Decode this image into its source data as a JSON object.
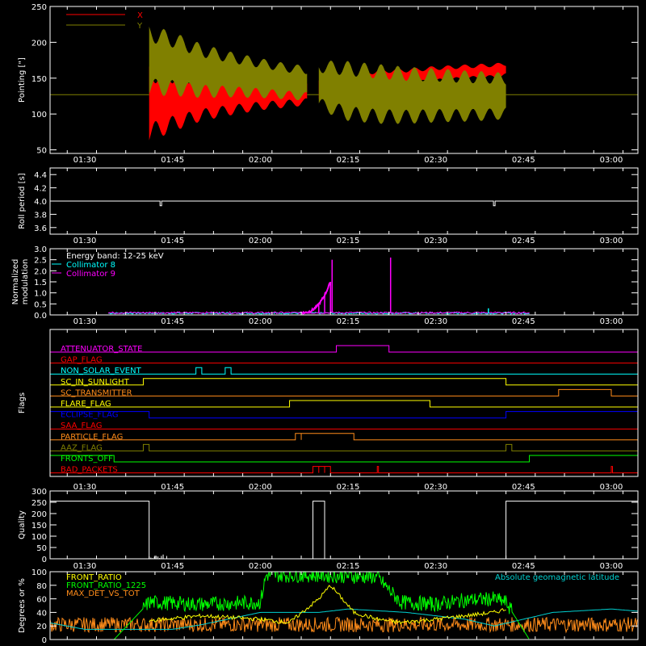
{
  "colors": {
    "background": "#000000",
    "axes": "#ffffff",
    "x": "#ff0000",
    "y": "#808000",
    "collimator8": "#00ffff",
    "collimator9": "#ff00ff",
    "front_ratio": "#ffff00",
    "front_ratio_1225": "#00ff00",
    "max_det": "#ff8c1a",
    "latitude": "#00d0d0"
  },
  "time_ticks": [
    "01:30",
    "01:45",
    "02:00",
    "02:15",
    "02:30",
    "02:45",
    "03:00"
  ],
  "chart_data": [
    {
      "id": "pointing",
      "type": "line",
      "ylabel": "Pointing [\"]",
      "ylim": [
        45,
        250
      ],
      "yticks": [
        "50",
        "100",
        "150",
        "200",
        "250"
      ],
      "legend": {
        "placement": "top-left",
        "entries": [
          "X",
          "Y"
        ]
      },
      "series": [
        {
          "name": "X",
          "color": "#ff0000",
          "x": [
            "01:41",
            "01:45",
            "01:50",
            "01:55",
            "02:00",
            "02:05",
            "02:08",
            "02:10",
            "02:15",
            "02:20",
            "02:25",
            "02:30",
            "02:35",
            "02:40",
            "02:42"
          ],
          "center": [
            115,
            120,
            125,
            128,
            130,
            131,
            132,
            134,
            142,
            150,
            152,
            155,
            158,
            160,
            162
          ],
          "halfwidth": [
            55,
            45,
            35,
            30,
            25,
            22,
            20,
            18,
            15,
            13,
            12,
            12,
            11,
            11,
            10
          ]
        },
        {
          "name": "Y",
          "color": "#808000",
          "x": [
            "01:41",
            "01:45",
            "01:50",
            "01:55",
            "02:00",
            "02:05",
            "02:08",
            "02:10",
            "02:15",
            "02:20",
            "02:25",
            "02:30",
            "02:35",
            "02:40",
            "02:42"
          ],
          "center": [
            175,
            170,
            160,
            155,
            150,
            145,
            143,
            140,
            132,
            128,
            126,
            126,
            125,
            125,
            125
          ],
          "halfwidth": [
            50,
            45,
            38,
            32,
            28,
            25,
            25,
            35,
            42,
            42,
            40,
            38,
            36,
            34,
            32
          ]
        }
      ],
      "baseline": 127
    },
    {
      "id": "roll",
      "type": "line",
      "ylabel": "Roll period [s]",
      "ylim": [
        3.5,
        4.5
      ],
      "yticks": [
        "3.6",
        "3.8",
        "4.0",
        "4.2",
        "4.4"
      ],
      "series": [
        {
          "name": "",
          "value": 4.0,
          "dips": [
            [
              "01:43",
              3.93
            ],
            [
              "02:40",
              3.93
            ]
          ]
        }
      ]
    },
    {
      "id": "modulation",
      "type": "line",
      "ylabel": "Normalized modulation",
      "ylim": [
        0,
        3.0
      ],
      "yticks": [
        "0.0",
        "0.5",
        "1.0",
        "1.5",
        "2.0",
        "2.5",
        "3.0"
      ],
      "legend": {
        "placement": "top-left",
        "entries": [
          "Energy band: 12-25 keV",
          "Collimator 8",
          "Collimator 9"
        ]
      },
      "series": [
        {
          "name": "Collimator 8",
          "color": "#00ffff",
          "x": [
            "01:34",
            "02:46"
          ],
          "baseline": 0.08,
          "spikes": [
            [
              "02:39",
              0.3
            ],
            [
              "02:12",
              0.5
            ]
          ]
        },
        {
          "name": "Collimator 9",
          "color": "#ff00ff",
          "x": [
            "01:34",
            "02:46"
          ],
          "baseline": 0.1,
          "spikes": [
            [
              "02:10",
              0.5
            ],
            [
              "02:11",
              0.9
            ],
            [
              "02:12",
              1.5
            ],
            [
              "02:12",
              2.5
            ],
            [
              "02:22",
              2.6
            ]
          ]
        }
      ]
    },
    {
      "id": "flags",
      "type": "line",
      "ylabel": "Flags",
      "flags": [
        {
          "name": "ATTENUATOR_STATE",
          "color": "#ff00ff",
          "high": [
            [
              "02:13",
              "02:22"
            ]
          ]
        },
        {
          "name": "GAP_FLAG",
          "color": "#ff0000",
          "high": []
        },
        {
          "name": "NON_SOLAR_EVENT",
          "color": "#00ffff",
          "high": [
            [
              "01:49",
              "01:50"
            ],
            [
              "01:54",
              "01:55"
            ]
          ]
        },
        {
          "name": "SC_IN_SUNLIGHT",
          "color": "#ffff00",
          "high": [
            [
              "01:40",
              "02:42"
            ]
          ]
        },
        {
          "name": "SC_TRANSMITTER",
          "color": "#ff8c1a",
          "high": [
            [
              "02:51",
              "03:00"
            ]
          ]
        },
        {
          "name": "FLARE_FLAG",
          "color": "#ffff00",
          "high": [
            [
              "02:05",
              "02:29"
            ]
          ]
        },
        {
          "name": "ECLIPSE_FLAG",
          "color": "#0000ff",
          "high": [
            [
              "01:22",
              "01:41"
            ],
            [
              "02:42",
              "03:10"
            ]
          ]
        },
        {
          "name": "SAA_FLAG",
          "color": "#ff0000",
          "high": []
        },
        {
          "name": "PARTICLE_FLAG",
          "color": "#ff8c1a",
          "high": [
            [
              "02:06",
              "02:07"
            ],
            [
              "02:07",
              "02:16"
            ]
          ]
        },
        {
          "name": "AAZ_FLAG",
          "color": "#808000",
          "high": [
            [
              "01:40",
              "01:41"
            ],
            [
              "02:42",
              "02:43"
            ]
          ]
        },
        {
          "name": "FRONTS_OFF",
          "color": "#00ff00",
          "high": [
            [
              "01:22",
              "01:35"
            ],
            [
              "02:46",
              "03:10"
            ]
          ]
        },
        {
          "name": "BAD_PACKETS",
          "color": "#ff0000",
          "high": [
            [
              "02:09",
              "02:10"
            ],
            [
              "02:10",
              "02:11"
            ],
            [
              "02:11",
              "02:12"
            ],
            [
              "02:20",
              "02:20"
            ],
            [
              "03:00",
              "03:00"
            ]
          ]
        }
      ]
    },
    {
      "id": "quality",
      "type": "line",
      "ylabel": "Quality",
      "ylim": [
        0,
        300
      ],
      "yticks": [
        "0",
        "50",
        "100",
        "150",
        "200",
        "250",
        "300"
      ],
      "series": [
        {
          "name": "",
          "steps": [
            [
              "01:22",
              255
            ],
            [
              "01:41",
              0
            ],
            [
              "02:09",
              255
            ],
            [
              "02:11",
              0
            ],
            [
              "02:42",
              255
            ],
            [
              "03:10",
              255
            ]
          ]
        }
      ]
    },
    {
      "id": "ratios",
      "type": "line",
      "ylabel": "Degrees or %",
      "ylim": [
        0,
        100
      ],
      "yticks": [
        "0",
        "20",
        "40",
        "60",
        "80",
        "100"
      ],
      "legend": {
        "placement": "top-left",
        "entries": [
          "FRONT_RATIO",
          "FRONT_RATIO_1225",
          "MAX_DET_VS_TOT"
        ]
      },
      "legend_right": "Absolute geomagnetic latitude",
      "series": [
        {
          "name": "FRONT_RATIO",
          "color": "#ffff00",
          "x": [
            "01:41",
            "01:50",
            "02:00",
            "02:05",
            "02:10",
            "02:12",
            "02:16",
            "02:20",
            "02:24",
            "02:30",
            "02:35",
            "02:40",
            "02:42"
          ],
          "y": [
            28,
            35,
            30,
            25,
            60,
            80,
            40,
            30,
            25,
            30,
            35,
            40,
            45
          ]
        },
        {
          "name": "FRONT_RATIO_1225",
          "color": "#00ff00",
          "x": [
            "01:35",
            "01:41",
            "01:50",
            "02:00",
            "02:01",
            "02:10",
            "02:20",
            "02:24",
            "02:30",
            "02:35",
            "02:40",
            "02:42",
            "02:46"
          ],
          "y": [
            0,
            55,
            52,
            55,
            95,
            95,
            92,
            55,
            52,
            58,
            60,
            55,
            0
          ]
        },
        {
          "name": "MAX_DET_VS_TOT",
          "color": "#ff8c1a",
          "baseline": 22
        },
        {
          "name": "Absolute geomagnetic latitude",
          "color": "#00d0d0",
          "x": [
            "01:22",
            "01:30",
            "01:45",
            "01:50",
            "02:00",
            "02:10",
            "02:15",
            "02:25",
            "02:35",
            "02:40",
            "02:50",
            "03:00",
            "03:10"
          ],
          "y": [
            28,
            15,
            15,
            22,
            40,
            40,
            45,
            40,
            30,
            20,
            40,
            45,
            38
          ]
        }
      ]
    }
  ]
}
